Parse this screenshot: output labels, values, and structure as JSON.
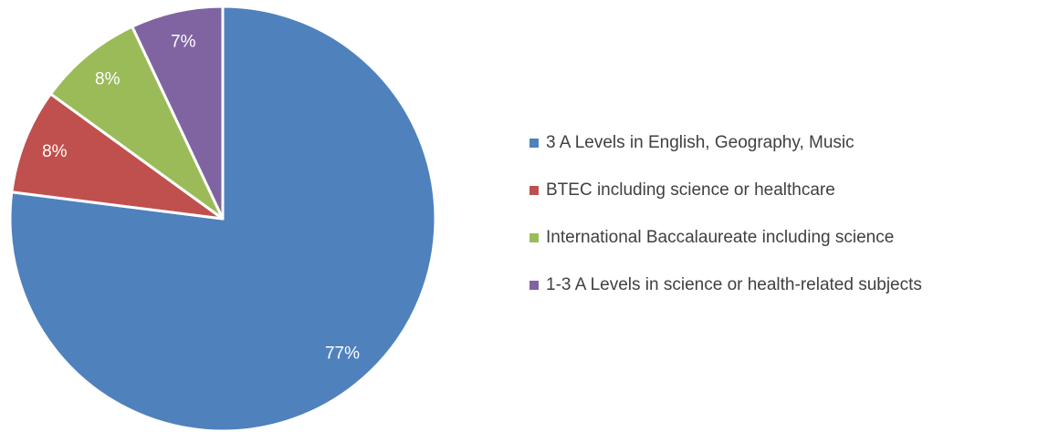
{
  "chart_data": {
    "type": "pie",
    "categories": [
      "3 A Levels in English, Geography, Music",
      "BTEC including science or healthcare",
      "International Baccalaureate including science",
      "1-3 A Levels in science or health-related subjects"
    ],
    "values": [
      77,
      8,
      8,
      7
    ],
    "value_labels": [
      "77%",
      "8%",
      "8%",
      "7%"
    ],
    "colors": [
      "#4f81bd",
      "#c0504d",
      "#9bbb59",
      "#8064a2"
    ],
    "legend": "right"
  }
}
